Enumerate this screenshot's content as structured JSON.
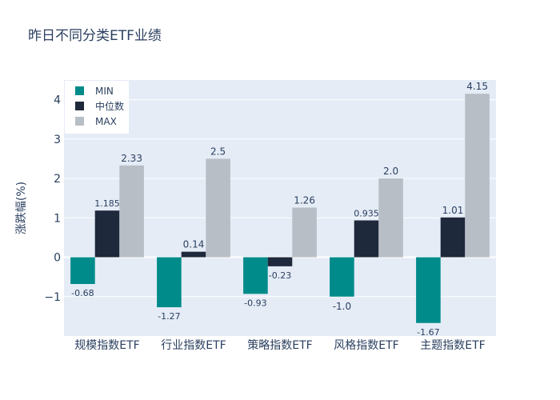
{
  "chart_data": {
    "type": "bar",
    "title": "昨日不同分类ETF业绩",
    "xlabel": "",
    "ylabel": "涨跌幅(%)",
    "categories": [
      "规模指数ETF",
      "行业指数ETF",
      "策略指数ETF",
      "风格指数ETF",
      "主题指数ETF"
    ],
    "series": [
      {
        "name": "MIN",
        "values": [
          -0.68,
          -1.27,
          -0.93,
          -1.0,
          -1.67
        ],
        "labels": [
          "-0.68",
          "-1.27",
          "-0.93",
          "-1.0",
          "-1.67"
        ],
        "color": "#008b8b"
      },
      {
        "name": "中位数",
        "values": [
          1.185,
          0.14,
          -0.23,
          0.935,
          1.01
        ],
        "labels": [
          "1.185",
          "0.14",
          "-0.23",
          "0.935",
          "1.01"
        ],
        "color": "#1e293b"
      },
      {
        "name": "MAX",
        "values": [
          2.33,
          2.5,
          1.26,
          2.0,
          4.15
        ],
        "labels": [
          "2.33",
          "2.5",
          "1.26",
          "2.0",
          "4.15"
        ],
        "color": "#b8bec6"
      }
    ],
    "ylim": [
      -2.0,
      4.5
    ],
    "yticks": [
      -1,
      0,
      1,
      2,
      3,
      4
    ],
    "ytick_labels": [
      "−1",
      "0",
      "1",
      "2",
      "3",
      "4"
    ],
    "grid": true,
    "legend_position": "top-left",
    "plot_background": "#e5ecf6",
    "gridline_color": "#ffffff",
    "text_color": "#2a3f5f"
  }
}
